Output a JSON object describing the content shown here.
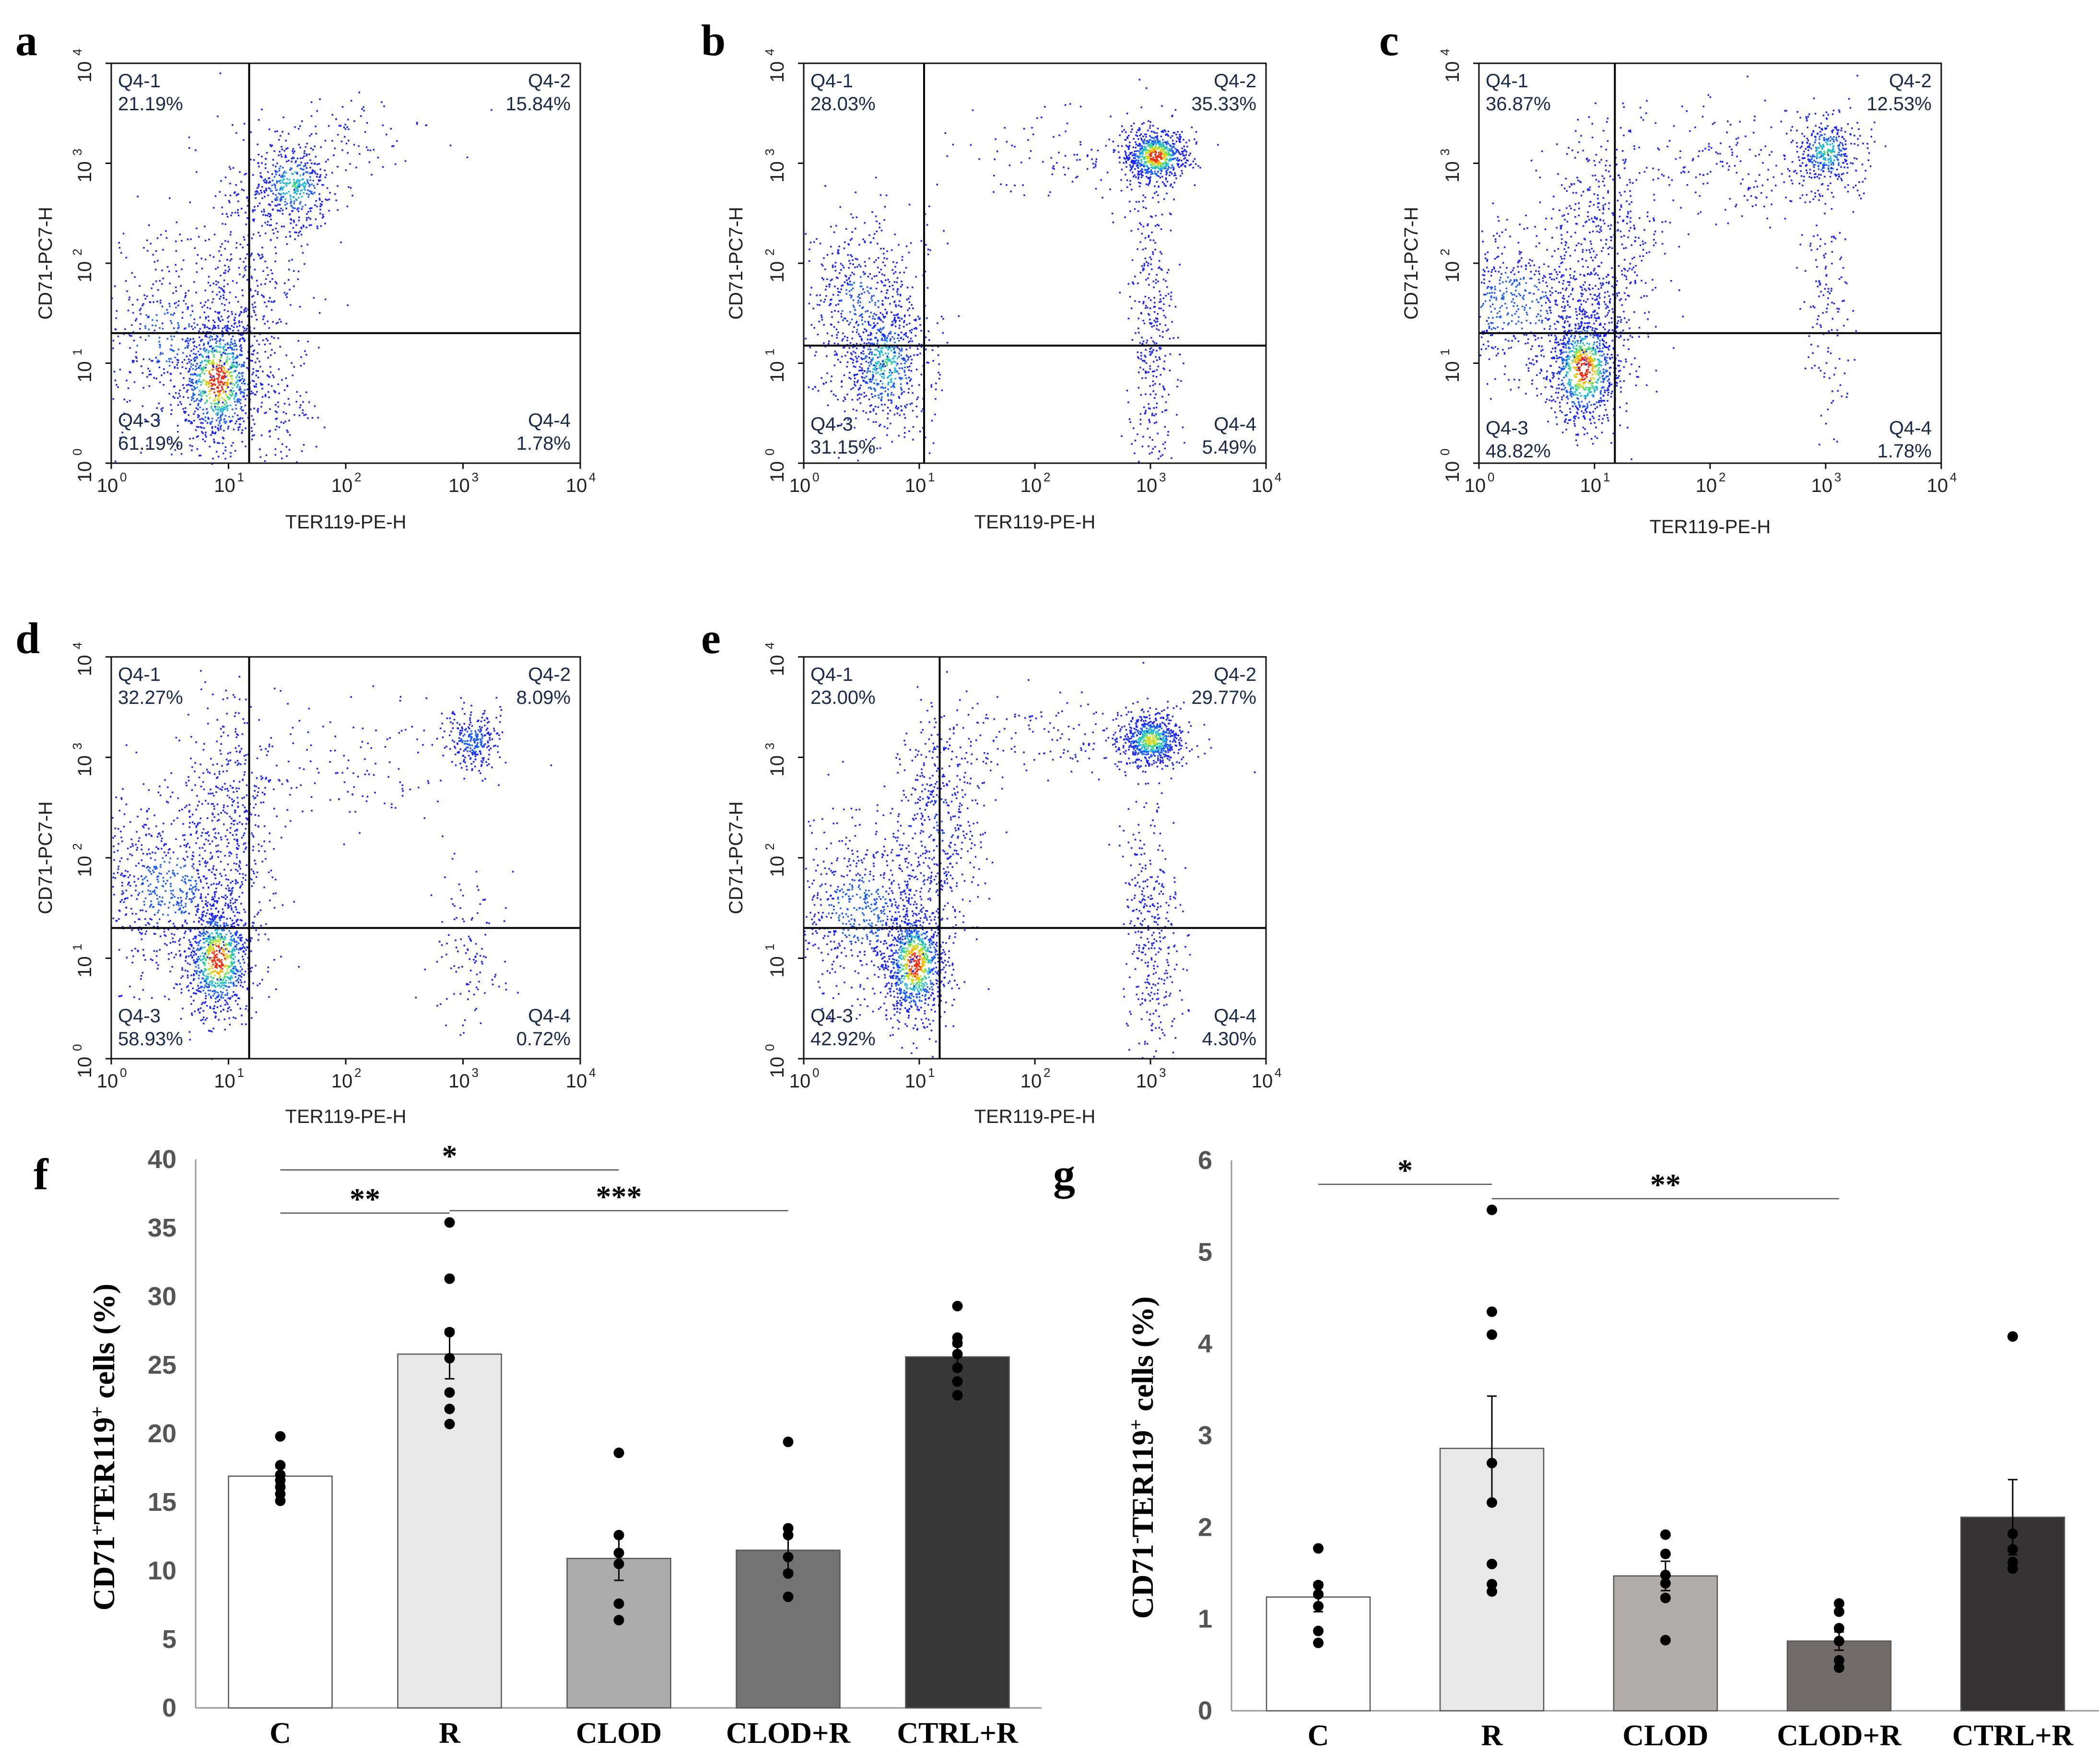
{
  "chart_data": [
    {
      "id": "a",
      "type": "scatter",
      "subtype": "flow-cytometry-density",
      "panel_label": "a",
      "xlabel": "TER119-PE-H",
      "ylabel": "CD71-PC7-H",
      "x_scale": "log",
      "y_scale": "log",
      "xlim": [
        1,
        10000
      ],
      "ylim": [
        1,
        10000
      ],
      "x_ticks": [
        "10",
        "10",
        "10",
        "10",
        "10"
      ],
      "x_tick_exp": [
        "0",
        "1",
        "2",
        "3",
        "4"
      ],
      "y_ticks": [
        "10",
        "10",
        "10",
        "10",
        "10"
      ],
      "y_tick_exp": [
        "0",
        "1",
        "2",
        "3",
        "4"
      ],
      "gate": {
        "x": 15,
        "y": 20
      },
      "quadrants": {
        "q1_name": "Q4-1",
        "q1_pct": "21.19%",
        "q2_name": "Q4-2",
        "q2_pct": "15.84%",
        "q3_name": "Q4-3",
        "q3_pct": "61.19%",
        "q4_name": "Q4-4",
        "q4_pct": "1.78%"
      },
      "populations": [
        {
          "x": 8,
          "y": 7,
          "sx": 0.18,
          "sy": 0.35,
          "n": 900,
          "dense": 1.0
        },
        {
          "x": 3,
          "y": 20,
          "sx": 0.45,
          "sy": 0.5,
          "n": 500,
          "dense": 0.3
        },
        {
          "x": 35,
          "y": 600,
          "sx": 0.18,
          "sy": 0.22,
          "n": 450,
          "dense": 0.6
        },
        {
          "x": 15,
          "y": 100,
          "sx": 0.25,
          "sy": 0.6,
          "n": 300,
          "dense": 0.2
        },
        {
          "x": 30,
          "y": 3,
          "sx": 0.12,
          "sy": 0.3,
          "n": 90,
          "dense": 0.1
        },
        {
          "x": 120,
          "y": 2000,
          "sx": 0.35,
          "sy": 0.2,
          "n": 80,
          "dense": 0.1
        }
      ]
    },
    {
      "id": "b",
      "type": "scatter",
      "subtype": "flow-cytometry-density",
      "panel_label": "b",
      "xlabel": "TER119-PE-H",
      "ylabel": "CD71-PC7-H",
      "x_scale": "log",
      "y_scale": "log",
      "xlim": [
        1,
        10000
      ],
      "ylim": [
        1,
        10000
      ],
      "x_ticks": [
        "10",
        "10",
        "10",
        "10",
        "10"
      ],
      "x_tick_exp": [
        "0",
        "1",
        "2",
        "3",
        "4"
      ],
      "y_ticks": [
        "10",
        "10",
        "10",
        "10",
        "10"
      ],
      "y_tick_exp": [
        "0",
        "1",
        "2",
        "3",
        "4"
      ],
      "gate": {
        "x": 11,
        "y": 15
      },
      "quadrants": {
        "q1_name": "Q4-1",
        "q1_pct": "28.03%",
        "q2_name": "Q4-2",
        "q2_pct": "35.33%",
        "q3_name": "Q4-3",
        "q3_pct": "31.15%",
        "q4_name": "Q4-4",
        "q4_pct": "5.49%"
      },
      "populations": [
        {
          "x": 5,
          "y": 10,
          "sx": 0.18,
          "sy": 0.35,
          "n": 600,
          "dense": 0.6
        },
        {
          "x": 3,
          "y": 40,
          "sx": 0.3,
          "sy": 0.45,
          "n": 500,
          "dense": 0.3
        },
        {
          "x": 1100,
          "y": 1200,
          "sx": 0.14,
          "sy": 0.14,
          "n": 700,
          "dense": 1.0
        },
        {
          "x": 1000,
          "y": 20,
          "sx": 0.1,
          "sy": 0.8,
          "n": 350,
          "dense": 0.15
        },
        {
          "x": 200,
          "y": 1200,
          "sx": 0.5,
          "sy": 0.25,
          "n": 120,
          "dense": 0.1
        }
      ]
    },
    {
      "id": "c",
      "type": "scatter",
      "subtype": "flow-cytometry-density",
      "panel_label": "c",
      "xlabel": "TER119-PE-H",
      "ylabel": "CD71-PC7-H",
      "x_scale": "log",
      "y_scale": "log",
      "xlim": [
        1,
        10000
      ],
      "ylim": [
        1,
        10000
      ],
      "x_ticks": [
        "10",
        "10",
        "10",
        "10",
        "10"
      ],
      "x_tick_exp": [
        "0",
        "1",
        "2",
        "3",
        "4"
      ],
      "y_ticks": [
        "10",
        "10",
        "10",
        "10",
        "10"
      ],
      "y_tick_exp": [
        "0",
        "1",
        "2",
        "3",
        "4"
      ],
      "gate": {
        "x": 15,
        "y": 20
      },
      "quadrants": {
        "q1_name": "Q4-1",
        "q1_pct": "36.87%",
        "q2_name": "Q4-2",
        "q2_pct": "12.53%",
        "q3_name": "Q4-3",
        "q3_pct": "48.82%",
        "q4_name": "Q4-4",
        "q4_pct": "1.78%"
      },
      "populations": [
        {
          "x": 8,
          "y": 9,
          "sx": 0.16,
          "sy": 0.3,
          "n": 900,
          "dense": 1.0
        },
        {
          "x": 2,
          "y": 40,
          "sx": 0.4,
          "sy": 0.4,
          "n": 600,
          "dense": 0.35
        },
        {
          "x": 12,
          "y": 150,
          "sx": 0.25,
          "sy": 0.6,
          "n": 500,
          "dense": 0.2
        },
        {
          "x": 1000,
          "y": 1300,
          "sx": 0.14,
          "sy": 0.18,
          "n": 380,
          "dense": 0.6
        },
        {
          "x": 1000,
          "y": 30,
          "sx": 0.1,
          "sy": 0.6,
          "n": 130,
          "dense": 0.1
        },
        {
          "x": 150,
          "y": 1000,
          "sx": 0.5,
          "sy": 0.3,
          "n": 200,
          "dense": 0.1
        }
      ]
    },
    {
      "id": "d",
      "type": "scatter",
      "subtype": "flow-cytometry-density",
      "panel_label": "d",
      "xlabel": "TER119-PE-H",
      "ylabel": "CD71-PC7-H",
      "x_scale": "log",
      "y_scale": "log",
      "xlim": [
        1,
        10000
      ],
      "ylim": [
        1,
        10000
      ],
      "x_ticks": [
        "10",
        "10",
        "10",
        "10",
        "10"
      ],
      "x_tick_exp": [
        "0",
        "1",
        "2",
        "3",
        "4"
      ],
      "y_ticks": [
        "10",
        "10",
        "10",
        "10",
        "10"
      ],
      "y_tick_exp": [
        "0",
        "1",
        "2",
        "3",
        "4"
      ],
      "gate": {
        "x": 15,
        "y": 20
      },
      "quadrants": {
        "q1_name": "Q4-1",
        "q1_pct": "32.27%",
        "q2_name": "Q4-2",
        "q2_pct": "8.09%",
        "q3_name": "Q4-3",
        "q3_pct": "58.93%",
        "q4_name": "Q4-4",
        "q4_pct": "0.72%"
      },
      "populations": [
        {
          "x": 8,
          "y": 10,
          "sx": 0.15,
          "sy": 0.3,
          "n": 900,
          "dense": 1.0
        },
        {
          "x": 3,
          "y": 50,
          "sx": 0.35,
          "sy": 0.45,
          "n": 700,
          "dense": 0.35
        },
        {
          "x": 10,
          "y": 300,
          "sx": 0.2,
          "sy": 0.5,
          "n": 400,
          "dense": 0.2
        },
        {
          "x": 1200,
          "y": 1500,
          "sx": 0.12,
          "sy": 0.14,
          "n": 250,
          "dense": 0.4
        },
        {
          "x": 1100,
          "y": 12,
          "sx": 0.15,
          "sy": 0.4,
          "n": 110,
          "dense": 0.1
        },
        {
          "x": 150,
          "y": 800,
          "sx": 0.5,
          "sy": 0.4,
          "n": 130,
          "dense": 0.1
        }
      ]
    },
    {
      "id": "e",
      "type": "scatter",
      "subtype": "flow-cytometry-density",
      "panel_label": "e",
      "xlabel": "TER119-PE-H",
      "ylabel": "CD71-PC7-H",
      "x_scale": "log",
      "y_scale": "log",
      "xlim": [
        1,
        10000
      ],
      "ylim": [
        1,
        10000
      ],
      "x_ticks": [
        "10",
        "10",
        "10",
        "10",
        "10"
      ],
      "x_tick_exp": [
        "0",
        "1",
        "2",
        "3",
        "4"
      ],
      "y_ticks": [
        "10",
        "10",
        "10",
        "10",
        "10"
      ],
      "y_tick_exp": [
        "0",
        "1",
        "2",
        "3",
        "4"
      ],
      "gate": {
        "x": 15,
        "y": 20
      },
      "quadrants": {
        "q1_name": "Q4-1",
        "q1_pct": "23.00%",
        "q2_name": "Q4-2",
        "q2_pct": "29.77%",
        "q3_name": "Q4-3",
        "q3_pct": "42.92%",
        "q4_name": "Q4-4",
        "q4_pct": "4.30%"
      },
      "populations": [
        {
          "x": 9,
          "y": 9,
          "sx": 0.14,
          "sy": 0.3,
          "n": 900,
          "dense": 1.0
        },
        {
          "x": 3,
          "y": 30,
          "sx": 0.35,
          "sy": 0.45,
          "n": 700,
          "dense": 0.35
        },
        {
          "x": 15,
          "y": 250,
          "sx": 0.2,
          "sy": 0.5,
          "n": 450,
          "dense": 0.25
        },
        {
          "x": 1000,
          "y": 1500,
          "sx": 0.14,
          "sy": 0.13,
          "n": 650,
          "dense": 0.8
        },
        {
          "x": 1000,
          "y": 20,
          "sx": 0.12,
          "sy": 0.7,
          "n": 350,
          "dense": 0.15
        },
        {
          "x": 200,
          "y": 1600,
          "sx": 0.5,
          "sy": 0.2,
          "n": 150,
          "dense": 0.1
        }
      ]
    },
    {
      "id": "f",
      "type": "bar",
      "panel_label": "f",
      "ylabel_main": "CD71",
      "ylabel_sup1": "+",
      "ylabel_mid": "TER119",
      "ylabel_sup2": "+",
      "ylabel_tail": " cells (%)",
      "ylim": [
        0,
        40
      ],
      "yticks": [
        "0",
        "5",
        "10",
        "15",
        "20",
        "25",
        "30",
        "35",
        "40"
      ],
      "categories": [
        "C",
        "R",
        "CLOD",
        "CLOD+R",
        "CTRL+R"
      ],
      "values": [
        16.9,
        25.8,
        10.9,
        11.5,
        25.6
      ],
      "errors": [
        0.6,
        1.8,
        1.6,
        1.5,
        0.8
      ],
      "colors": [
        "#ffffff",
        "#e8e8e8",
        "#acacac",
        "#737373",
        "#363636"
      ],
      "points": [
        [
          15.1,
          15.6,
          16.1,
          16.6,
          17.0,
          17.7,
          19.8
        ],
        [
          20.7,
          21.8,
          23.0,
          25.5,
          27.4,
          31.3,
          35.4
        ],
        [
          6.4,
          7.6,
          10.5,
          11.3,
          12.6,
          18.6
        ],
        [
          8.1,
          9.8,
          11.0,
          12.6,
          13.1,
          19.4
        ],
        [
          22.8,
          23.8,
          24.8,
          25.8,
          26.6,
          27.0,
          29.3
        ]
      ],
      "significance": [
        {
          "from": 0,
          "to": 1,
          "label": "**"
        },
        {
          "from": 0,
          "to": 2,
          "label": "*"
        },
        {
          "from": 1,
          "to": 3,
          "label": "***"
        }
      ]
    },
    {
      "id": "g",
      "type": "bar",
      "panel_label": "g",
      "ylabel_main": "CD71",
      "ylabel_sup1": "-",
      "ylabel_mid": "TER119",
      "ylabel_sup2": "+",
      "ylabel_tail": " cells (%)",
      "ylim": [
        0,
        6
      ],
      "yticks": [
        "0",
        "1",
        "2",
        "3",
        "4",
        "5",
        "6"
      ],
      "categories": [
        "C",
        "R",
        "CLOD",
        "CLOD+R",
        "CTRL+R"
      ],
      "values": [
        1.24,
        2.86,
        1.47,
        0.76,
        2.11
      ],
      "errors": [
        0.16,
        0.57,
        0.16,
        0.1,
        0.41
      ],
      "colors": [
        "#ffffff",
        "#e8e8e8",
        "#b0acaa",
        "#716c6a",
        "#363334"
      ],
      "points": [
        [
          0.74,
          0.87,
          1.14,
          1.27,
          1.37,
          1.77
        ],
        [
          1.3,
          1.38,
          1.6,
          2.27,
          2.7,
          4.1,
          4.35,
          5.46
        ],
        [
          0.77,
          1.23,
          1.39,
          1.48,
          1.71,
          1.92
        ],
        [
          0.47,
          0.55,
          0.76,
          0.9,
          1.08,
          1.17
        ],
        [
          1.55,
          1.62,
          1.76,
          1.93,
          4.08
        ]
      ],
      "significance": [
        {
          "from": 0,
          "to": 1,
          "label": "*"
        },
        {
          "from": 1,
          "to": 3,
          "label": "**"
        }
      ]
    }
  ]
}
